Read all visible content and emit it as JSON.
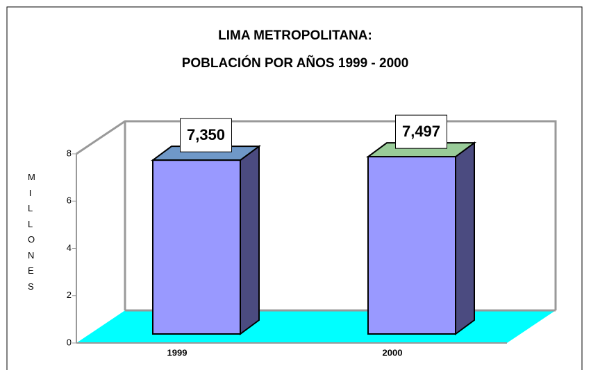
{
  "chart_data": {
    "type": "bar3d",
    "title": [
      "LIMA METROPOLITANA:",
      "POBLACIÓN POR AÑOS 1999 - 2000"
    ],
    "y_label": "MILLONES",
    "categories": [
      "1999",
      "2000"
    ],
    "values": [
      7.35,
      7.497
    ],
    "value_labels": [
      "7,350",
      "7,497"
    ],
    "color": "#9999ff",
    "top_colors": [
      "#6f98c8",
      "#99cc99"
    ],
    "ylim": [
      0,
      8
    ],
    "yticks": [
      0,
      2,
      4,
      6,
      8
    ],
    "grid": false
  }
}
